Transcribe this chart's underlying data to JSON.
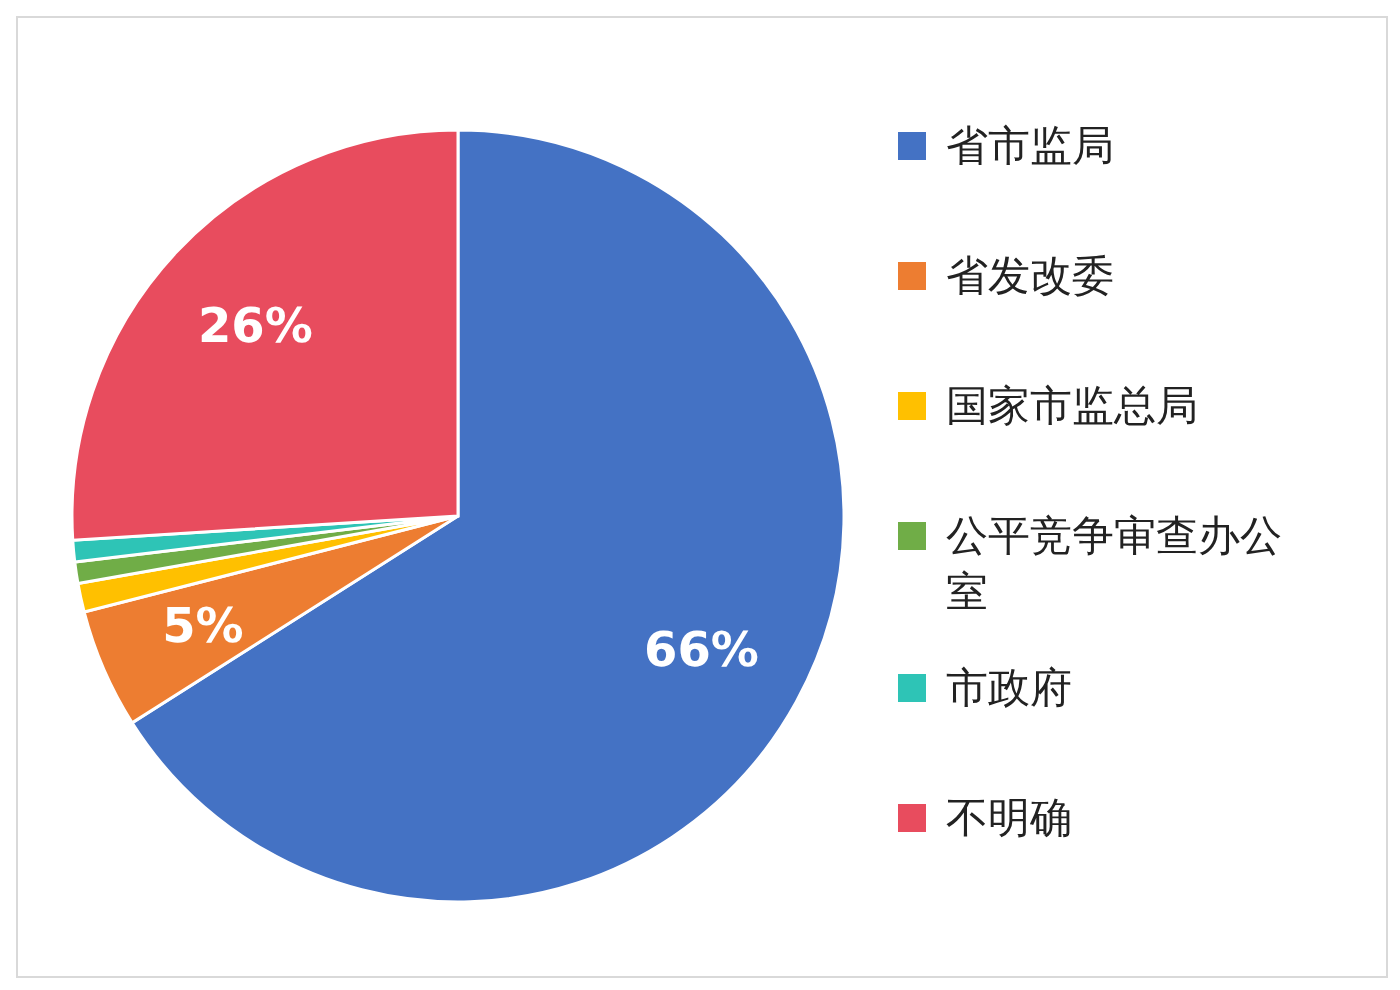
{
  "chart_data": {
    "type": "pie",
    "categories": [
      "省市监局",
      "省发改委",
      "国家市监总局",
      "公平竞争审查办公室",
      "市政府",
      "不明确"
    ],
    "values": [
      66,
      5,
      1.2,
      0.9,
      0.9,
      26
    ],
    "colors": [
      "#4472c4",
      "#ed7d31",
      "#ffc000",
      "#70ad47",
      "#2ec4b6",
      "#e84c5e"
    ],
    "value_labels": [
      "66%",
      "5%",
      null,
      null,
      null,
      "26%"
    ],
    "legend": "right"
  }
}
